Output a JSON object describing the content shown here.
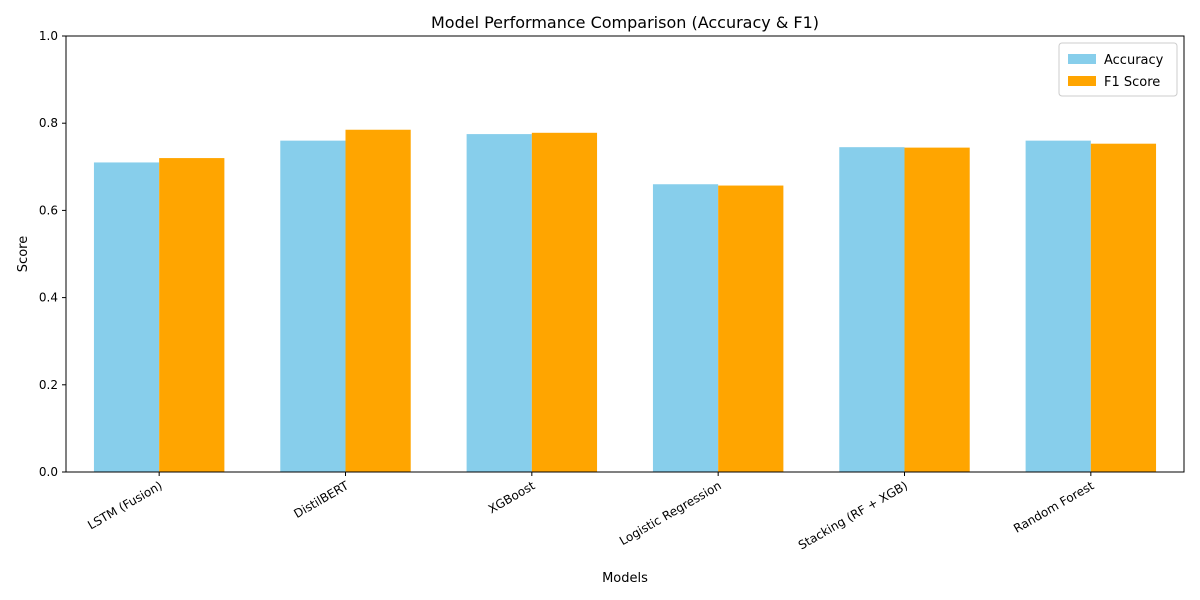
{
  "chart_data": {
    "type": "bar",
    "title": "Model Performance Comparison (Accuracy & F1)",
    "xlabel": "Models",
    "ylabel": "Score",
    "categories": [
      "LSTM (Fusion)",
      "DistilBERT",
      "XGBoost",
      "Logistic Regression",
      "Stacking (RF + XGB)",
      "Random Forest"
    ],
    "series": [
      {
        "name": "Accuracy",
        "color": "#87ceeb",
        "values": [
          0.71,
          0.76,
          0.775,
          0.66,
          0.745,
          0.76
        ]
      },
      {
        "name": "F1 Score",
        "color": "#ffa500",
        "values": [
          0.72,
          0.785,
          0.778,
          0.657,
          0.744,
          0.753
        ]
      }
    ],
    "ylim": [
      0,
      1.0
    ],
    "yticks": [
      "0.0",
      "0.2",
      "0.4",
      "0.6",
      "0.8",
      "1.0"
    ],
    "grid": false,
    "legend": "top-right"
  }
}
